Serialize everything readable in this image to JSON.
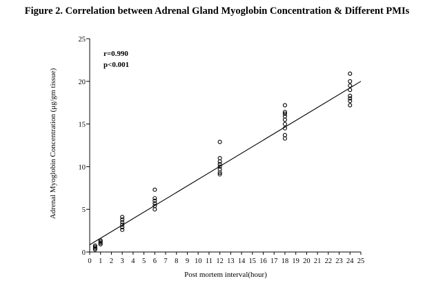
{
  "figure_title": "Figure 2. Correlation between Adrenal Gland Myoglobin Concentration & Different PMIs",
  "chart_data": {
    "type": "scatter",
    "title": "Figure 2. Correlation between Adrenal Gland Myoglobin Concentration & Different PMIs",
    "xlabel": "Post mortem interval(hour)",
    "ylabel": "Adrenal Myoglobin Concentration (μg/gm tissue)",
    "xlim": [
      0,
      25
    ],
    "ylim": [
      0,
      25
    ],
    "x_ticks": [
      0,
      1,
      2,
      3,
      4,
      5,
      6,
      7,
      8,
      9,
      10,
      11,
      12,
      13,
      14,
      15,
      16,
      17,
      18,
      19,
      20,
      21,
      22,
      23,
      24,
      25
    ],
    "y_ticks": [
      0,
      5,
      10,
      15,
      20,
      25
    ],
    "grid": false,
    "annotations": [
      "r=0.990",
      "p<0.001"
    ],
    "points": [
      [
        0.5,
        0.3
      ],
      [
        0.5,
        0.45
      ],
      [
        0.5,
        0.6
      ],
      [
        0.5,
        0.75
      ],
      [
        1,
        0.9
      ],
      [
        1,
        1.05
      ],
      [
        1,
        1.2
      ],
      [
        1,
        1.35
      ],
      [
        3,
        2.6
      ],
      [
        3,
        2.9
      ],
      [
        3,
        3.2
      ],
      [
        3,
        3.5
      ],
      [
        3,
        3.8
      ],
      [
        3,
        4.1
      ],
      [
        6,
        5.0
      ],
      [
        6,
        5.4
      ],
      [
        6,
        5.7
      ],
      [
        6,
        6.0
      ],
      [
        6,
        6.3
      ],
      [
        6,
        7.3
      ],
      [
        12,
        9.1
      ],
      [
        12,
        9.3
      ],
      [
        12,
        9.7
      ],
      [
        12,
        10.0
      ],
      [
        12,
        10.3
      ],
      [
        12,
        10.6
      ],
      [
        12,
        11.0
      ],
      [
        12,
        12.9
      ],
      [
        18,
        13.3
      ],
      [
        18,
        13.7
      ],
      [
        18,
        14.5
      ],
      [
        18,
        15.0
      ],
      [
        18,
        15.5
      ],
      [
        18,
        15.9
      ],
      [
        18,
        16.2
      ],
      [
        18,
        16.4
      ],
      [
        18,
        17.2
      ],
      [
        24,
        17.2
      ],
      [
        24,
        17.7
      ],
      [
        24,
        18.0
      ],
      [
        24,
        18.3
      ],
      [
        24,
        19.0
      ],
      [
        24,
        19.5
      ],
      [
        24,
        20.0
      ],
      [
        24,
        20.9
      ]
    ],
    "regression_line": {
      "x": [
        0,
        25
      ],
      "y": [
        0.85,
        20.0
      ]
    }
  }
}
